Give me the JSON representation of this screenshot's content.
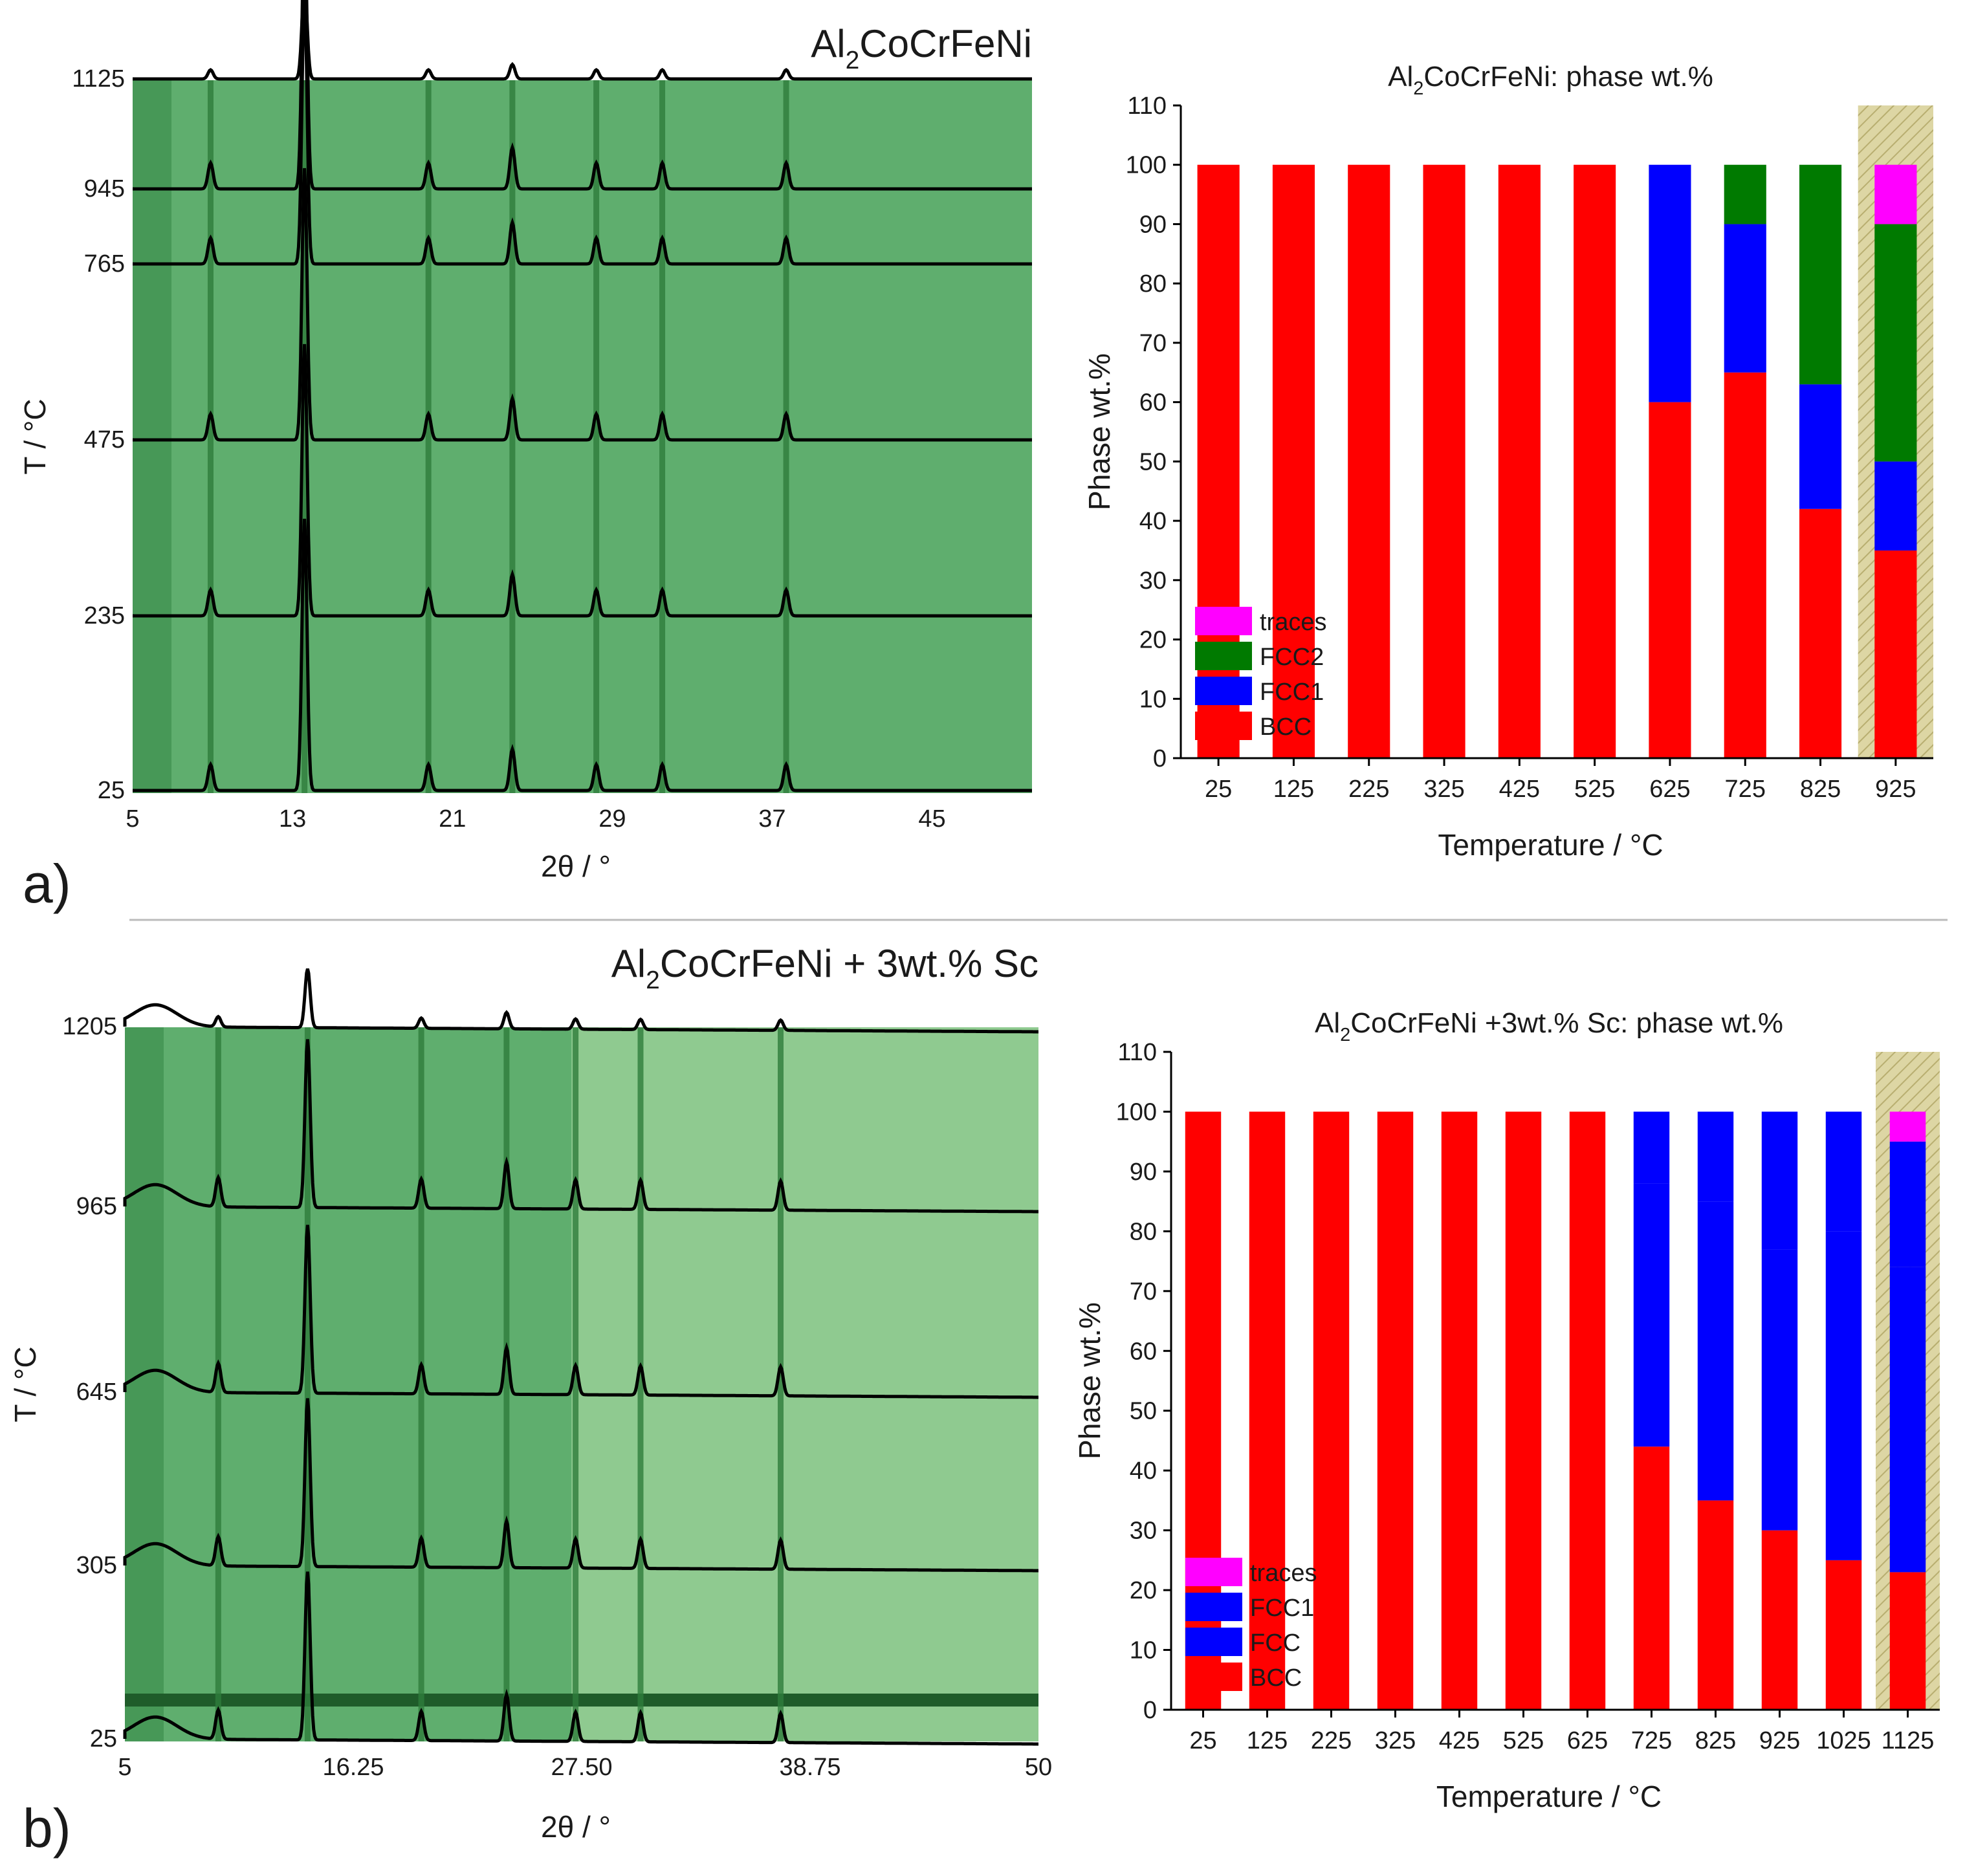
{
  "figure": {
    "panel_a_label": "a)",
    "panel_b_label": "b)",
    "colors": {
      "BCC": "#ff0000",
      "FCC1": "#0000ff",
      "FCC2": "#007a00",
      "FCC": "#0000ff",
      "traces": "#ff00ff",
      "highlight": "#d8d2a0",
      "xrd_bg": "#5fae6e",
      "xrd_bg_light": "#8fca90"
    }
  },
  "chart_data": [
    {
      "id": "a-xrd",
      "type": "heatmap",
      "title": "Al2CoCrFeNi",
      "title_parts": {
        "pre": "Al",
        "sub": "2",
        "post": "CoCrFeNi"
      },
      "xlabel": "2θ / °",
      "ylabel": "T / °C",
      "xlim": [
        5,
        50
      ],
      "xticks": [
        5,
        13,
        21,
        29,
        37,
        45
      ],
      "ytick_labels": [
        "25",
        "235",
        "475",
        "765",
        "945",
        "1125"
      ],
      "pattern_temperatures": [
        25,
        235,
        475,
        765,
        945,
        1125
      ],
      "peak_positions_2theta": [
        8.9,
        13.6,
        19.8,
        24.0,
        28.2,
        31.5,
        37.7
      ]
    },
    {
      "id": "a-phase",
      "type": "bar",
      "stacked": true,
      "title": "Al2CoCrFeNi: phase wt.%",
      "title_parts": {
        "pre": "Al",
        "sub": "2",
        "post": "CoCrFeNi: phase wt.%"
      },
      "xlabel": "Temperature / °C",
      "ylabel": "Phase wt.%",
      "ylim": [
        0,
        110
      ],
      "yticks": [
        0,
        10,
        20,
        30,
        40,
        50,
        60,
        70,
        80,
        90,
        100,
        110
      ],
      "categories": [
        "25",
        "125",
        "225",
        "325",
        "425",
        "525",
        "625",
        "725",
        "825",
        "925"
      ],
      "highlight_category": "925",
      "legend": [
        "traces",
        "FCC2",
        "FCC1",
        "BCC"
      ],
      "series": [
        {
          "name": "BCC",
          "values": [
            100,
            100,
            100,
            100,
            100,
            100,
            60,
            65,
            42,
            35
          ]
        },
        {
          "name": "FCC1",
          "values": [
            0,
            0,
            0,
            0,
            0,
            0,
            40,
            25,
            21,
            15
          ]
        },
        {
          "name": "FCC2",
          "values": [
            0,
            0,
            0,
            0,
            0,
            0,
            0,
            10,
            37,
            40
          ]
        },
        {
          "name": "traces",
          "values": [
            0,
            0,
            0,
            0,
            0,
            0,
            0,
            0,
            0,
            10
          ]
        }
      ]
    },
    {
      "id": "b-xrd",
      "type": "heatmap",
      "title": "Al2CoCrFeNi + 3wt.% Sc",
      "title_parts": {
        "pre": "Al",
        "sub": "2",
        "post": "CoCrFeNi + 3wt.% Sc"
      },
      "xlabel": "2θ / °",
      "ylabel": "T / °C",
      "xlim": [
        5,
        50
      ],
      "xticks": [
        5,
        16.25,
        27.5,
        38.75,
        50
      ],
      "xtick_labels": [
        "5",
        "16.25",
        "27.50",
        "38.75",
        "50"
      ],
      "ytick_labels": [
        "25",
        "305",
        "645",
        "965",
        "1205"
      ],
      "pattern_temperatures": [
        25,
        305,
        645,
        965,
        1205
      ],
      "peak_positions_2theta": [
        9.6,
        14.0,
        19.6,
        23.8,
        27.2,
        30.4,
        37.3
      ]
    },
    {
      "id": "b-phase",
      "type": "bar",
      "stacked": true,
      "title": "Al2CoCrFeNi +3wt.% Sc: phase wt.%",
      "title_parts": {
        "pre": "Al",
        "sub": "2",
        "post": "CoCrFeNi +3wt.% Sc: phase wt.%"
      },
      "xlabel": "Temperature / °C",
      "ylabel": "Phase wt.%",
      "ylim": [
        0,
        110
      ],
      "yticks": [
        0,
        10,
        20,
        30,
        40,
        50,
        60,
        70,
        80,
        90,
        100,
        110
      ],
      "categories": [
        "25",
        "125",
        "225",
        "325",
        "425",
        "525",
        "625",
        "725",
        "825",
        "925",
        "1025",
        "1125"
      ],
      "highlight_category": "1125",
      "legend": [
        "traces",
        "FCC1",
        "FCC",
        "BCC"
      ],
      "series": [
        {
          "name": "BCC",
          "values": [
            100,
            100,
            100,
            100,
            100,
            100,
            100,
            44,
            35,
            30,
            25,
            23
          ]
        },
        {
          "name": "FCC",
          "values": [
            0,
            0,
            0,
            0,
            0,
            0,
            0,
            44,
            50,
            47,
            55,
            51
          ]
        },
        {
          "name": "FCC1",
          "values": [
            0,
            0,
            0,
            0,
            0,
            0,
            0,
            12,
            15,
            23,
            20,
            21
          ]
        },
        {
          "name": "traces",
          "values": [
            0,
            0,
            0,
            0,
            0,
            0,
            0,
            0,
            0,
            0,
            0,
            5
          ]
        }
      ]
    }
  ]
}
